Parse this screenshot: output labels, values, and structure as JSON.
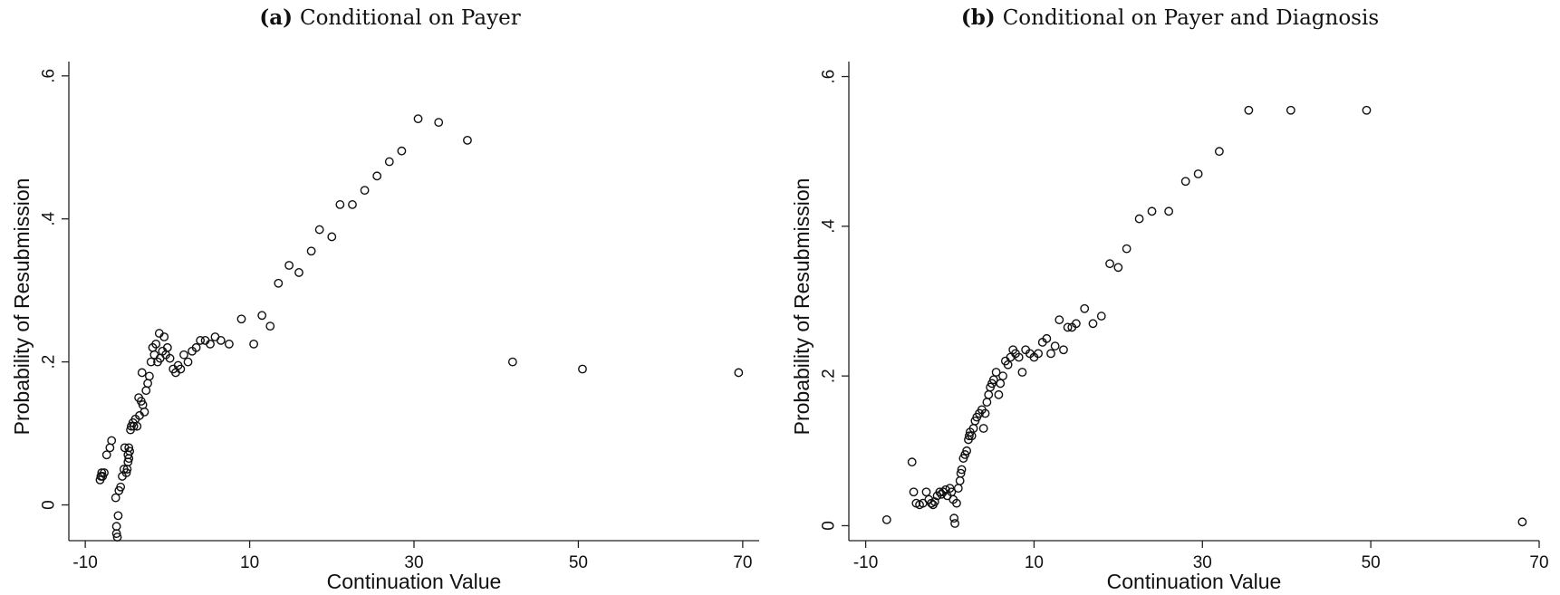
{
  "chart_data": [
    {
      "type": "scatter",
      "panel_label": "(a)",
      "title": "Conditional on Payer",
      "xlabel": "Continuation Value",
      "ylabel": "Probability of Resubmission",
      "xlim": [
        -12,
        72
      ],
      "ylim": [
        -0.05,
        0.62
      ],
      "xticks": [
        -10,
        10,
        30,
        50,
        70
      ],
      "xtick_labels": [
        "-10",
        "10",
        "30",
        "50",
        "70"
      ],
      "yticks": [
        0,
        0.2,
        0.4,
        0.6
      ],
      "ytick_labels": [
        "0",
        ".2",
        ".4",
        ".6"
      ],
      "grid": false,
      "marker": "hollow-circle",
      "x": [
        -8.2,
        -8.1,
        -8.0,
        -7.9,
        -7.7,
        -7.4,
        -7.0,
        -6.8,
        -6.3,
        -6.2,
        -6.2,
        -6.1,
        -6.0,
        -5.9,
        -5.7,
        -5.5,
        -5.3,
        -5.0,
        -5.2,
        -4.9,
        -4.8,
        -4.7,
        -4.8,
        -4.6,
        -4.7,
        -4.5,
        -4.4,
        -4.2,
        -4.1,
        -3.9,
        -3.7,
        -3.5,
        -3.2,
        -3.0,
        -3.4,
        -2.8,
        -3.1,
        -2.6,
        -2.4,
        -2.2,
        -2.0,
        -1.8,
        -1.6,
        -1.4,
        -1.2,
        -1.0,
        -0.9,
        -0.6,
        -0.4,
        -0.2,
        0.0,
        0.3,
        0.7,
        1.0,
        1.3,
        1.6,
        2.0,
        2.5,
        3.0,
        3.5,
        4.0,
        4.6,
        5.2,
        5.8,
        6.5,
        7.5,
        9.0,
        10.5,
        11.5,
        12.5,
        13.5,
        14.8,
        16.0,
        17.5,
        18.5,
        20.0,
        21.0,
        22.5,
        24.0,
        25.5,
        27.0,
        28.5,
        30.5,
        33.0,
        36.5,
        42.0,
        50.5,
        69.5
      ],
      "y": [
        0.035,
        0.04,
        0.045,
        0.04,
        0.045,
        0.07,
        0.08,
        0.09,
        0.01,
        -0.03,
        -0.04,
        -0.045,
        -0.015,
        0.02,
        0.025,
        0.04,
        0.05,
        0.045,
        0.08,
        0.05,
        0.06,
        0.065,
        0.07,
        0.075,
        0.08,
        0.105,
        0.11,
        0.115,
        0.11,
        0.12,
        0.11,
        0.15,
        0.145,
        0.14,
        0.125,
        0.13,
        0.185,
        0.16,
        0.17,
        0.18,
        0.2,
        0.22,
        0.21,
        0.225,
        0.2,
        0.24,
        0.205,
        0.215,
        0.235,
        0.21,
        0.22,
        0.205,
        0.19,
        0.185,
        0.195,
        0.19,
        0.21,
        0.2,
        0.215,
        0.22,
        0.23,
        0.23,
        0.225,
        0.235,
        0.23,
        0.225,
        0.26,
        0.225,
        0.265,
        0.25,
        0.31,
        0.335,
        0.325,
        0.355,
        0.385,
        0.375,
        0.42,
        0.42,
        0.44,
        0.46,
        0.48,
        0.495,
        0.54,
        0.535,
        0.51,
        0.2,
        0.19,
        0.185
      ]
    },
    {
      "type": "scatter",
      "panel_label": "(b)",
      "title": "Conditional on Payer and Diagnosis",
      "xlabel": "Continuation Value",
      "ylabel": "Probability of Resubmission",
      "xlim": [
        -12,
        70
      ],
      "ylim": [
        -0.02,
        0.62
      ],
      "xticks": [
        -10,
        10,
        30,
        50,
        70
      ],
      "xtick_labels": [
        "-10",
        "10",
        "30",
        "50",
        "70"
      ],
      "yticks": [
        0,
        0.2,
        0.4,
        0.6
      ],
      "ytick_labels": [
        "0",
        ".2",
        ".4",
        ".6"
      ],
      "grid": false,
      "marker": "hollow-circle",
      "x": [
        -7.5,
        -4.5,
        -4.3,
        -4.0,
        -3.6,
        -3.2,
        -2.8,
        -2.5,
        -2.2,
        -2.0,
        -1.8,
        -1.5,
        -1.2,
        -1.0,
        -0.8,
        -0.5,
        -0.3,
        0.0,
        0.2,
        0.4,
        0.5,
        0.6,
        0.8,
        1.0,
        1.2,
        1.3,
        1.4,
        1.6,
        1.8,
        2.0,
        2.2,
        2.3,
        2.4,
        2.6,
        2.8,
        3.0,
        3.2,
        3.5,
        3.8,
        4.0,
        4.2,
        4.4,
        4.6,
        4.8,
        5.0,
        5.2,
        5.5,
        5.8,
        6.0,
        6.3,
        6.6,
        6.9,
        7.2,
        7.5,
        7.8,
        8.2,
        8.6,
        9.0,
        9.5,
        10.0,
        10.5,
        11.0,
        11.5,
        12.0,
        12.5,
        13.0,
        13.5,
        14.0,
        14.5,
        15.0,
        16.0,
        17.0,
        18.0,
        19.0,
        20.0,
        21.0,
        22.5,
        24.0,
        26.0,
        28.0,
        29.5,
        32.0,
        35.5,
        40.5,
        49.5,
        68.0
      ],
      "y": [
        0.008,
        0.085,
        0.045,
        0.03,
        0.028,
        0.03,
        0.045,
        0.035,
        0.03,
        0.028,
        0.032,
        0.04,
        0.045,
        0.042,
        0.045,
        0.048,
        0.04,
        0.05,
        0.045,
        0.035,
        0.01,
        0.003,
        0.03,
        0.05,
        0.06,
        0.07,
        0.075,
        0.09,
        0.095,
        0.1,
        0.115,
        0.12,
        0.125,
        0.12,
        0.13,
        0.14,
        0.145,
        0.15,
        0.155,
        0.13,
        0.15,
        0.165,
        0.175,
        0.185,
        0.19,
        0.195,
        0.205,
        0.175,
        0.19,
        0.2,
        0.22,
        0.215,
        0.225,
        0.235,
        0.23,
        0.225,
        0.205,
        0.235,
        0.23,
        0.225,
        0.23,
        0.245,
        0.25,
        0.23,
        0.24,
        0.275,
        0.235,
        0.265,
        0.265,
        0.27,
        0.29,
        0.27,
        0.28,
        0.35,
        0.345,
        0.37,
        0.41,
        0.42,
        0.42,
        0.46,
        0.47,
        0.5,
        0.555,
        0.555,
        0.555,
        0.005
      ]
    }
  ]
}
